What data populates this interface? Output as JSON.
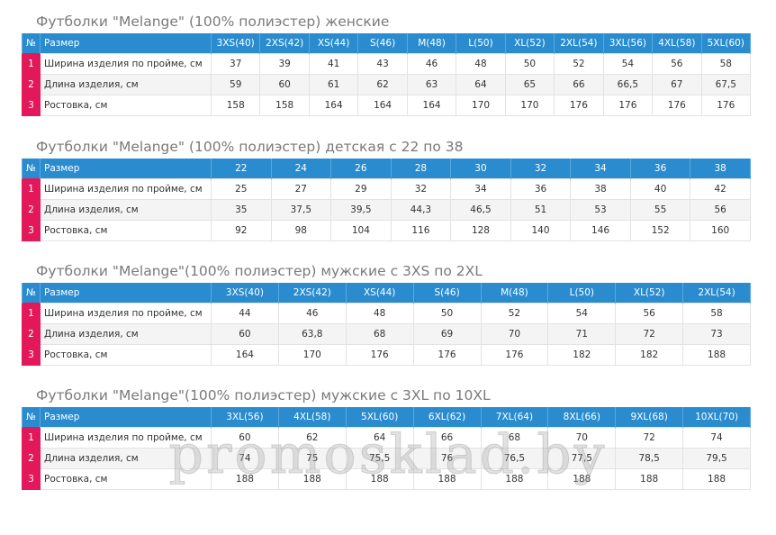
{
  "row_labels": [
    "Ширина изделия по пройме, см",
    "Длина изделия, см",
    "Ростовка, см"
  ],
  "row_numbers": [
    "1",
    "2",
    "3"
  ],
  "header_num": "№",
  "header_size": "Размер",
  "watermark": "promosklad.by",
  "tables": [
    {
      "title": "Футболки \"Melange\" (100% полиэстер) женские",
      "sizes": [
        "3XS(40)",
        "2XS(42)",
        "XS(44)",
        "S(46)",
        "M(48)",
        "L(50)",
        "XL(52)",
        "2XL(54)",
        "3XL(56)",
        "4XL(58)",
        "5XL(60)"
      ],
      "rows": [
        [
          "37",
          "39",
          "41",
          "43",
          "46",
          "48",
          "50",
          "52",
          "54",
          "56",
          "58"
        ],
        [
          "59",
          "60",
          "61",
          "62",
          "63",
          "64",
          "65",
          "66",
          "66,5",
          "67",
          "67,5"
        ],
        [
          "158",
          "158",
          "164",
          "164",
          "164",
          "170",
          "170",
          "176",
          "176",
          "176",
          "176"
        ]
      ]
    },
    {
      "title": "Футболки \"Melange\" (100% полиэстер) детская с 22 по 38",
      "sizes": [
        "22",
        "24",
        "26",
        "28",
        "30",
        "32",
        "34",
        "36",
        "38"
      ],
      "rows": [
        [
          "25",
          "27",
          "29",
          "32",
          "34",
          "36",
          "38",
          "40",
          "42"
        ],
        [
          "35",
          "37,5",
          "39,5",
          "44,3",
          "46,5",
          "51",
          "53",
          "55",
          "56"
        ],
        [
          "92",
          "98",
          "104",
          "116",
          "128",
          "140",
          "146",
          "152",
          "160"
        ]
      ]
    },
    {
      "title": "Футболки \"Melange\"(100% полиэстер) мужские с 3XS по 2XL",
      "sizes": [
        "3XS(40)",
        "2XS(42)",
        "XS(44)",
        "S(46)",
        "M(48)",
        "L(50)",
        "XL(52)",
        "2XL(54)"
      ],
      "rows": [
        [
          "44",
          "46",
          "48",
          "50",
          "52",
          "54",
          "56",
          "58"
        ],
        [
          "60",
          "63,8",
          "68",
          "69",
          "70",
          "71",
          "72",
          "73"
        ],
        [
          "164",
          "170",
          "176",
          "176",
          "176",
          "182",
          "182",
          "188"
        ]
      ]
    },
    {
      "title": "Футболки \"Melange\"(100% полиэстер) мужские с 3XL по 10XL",
      "sizes": [
        "3XL(56)",
        "4XL(58)",
        "5XL(60)",
        "6XL(62)",
        "7XL(64)",
        "8XL(66)",
        "9XL(68)",
        "10XL(70)"
      ],
      "rows": [
        [
          "60",
          "62",
          "64",
          "66",
          "68",
          "70",
          "72",
          "74"
        ],
        [
          "74",
          "75",
          "75,5",
          "76",
          "76,5",
          "77,5",
          "78,5",
          "79,5"
        ],
        [
          "188",
          "188",
          "188",
          "188",
          "188",
          "188",
          "188",
          "188"
        ]
      ]
    }
  ]
}
